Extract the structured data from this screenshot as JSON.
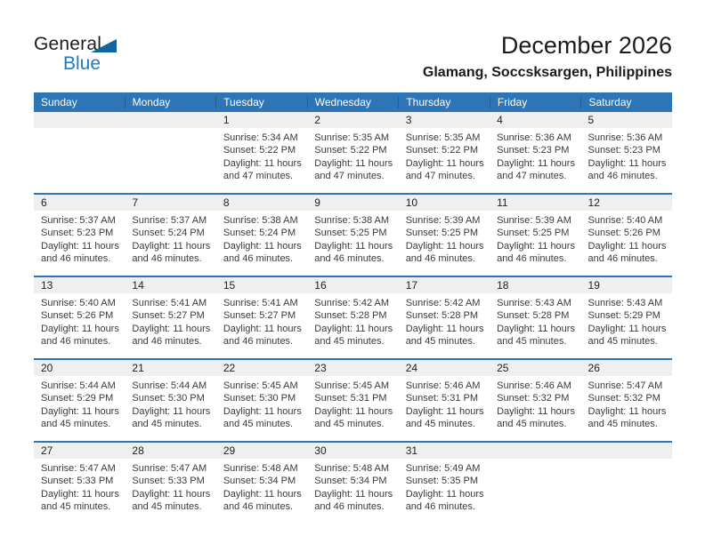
{
  "logo": {
    "general": "General",
    "blue": "Blue"
  },
  "header": {
    "title": "December 2026",
    "subtitle": "Glamang, Soccsksargen, Philippines"
  },
  "colors": {
    "header_blue": "#2E75B6",
    "header_divider": "#255E94",
    "row_separator_blue": "#2E75B6",
    "stripe_gray": "#EFEFEF",
    "weekday_text": "#FFFFFF",
    "logo_blue": "#1A7DC0",
    "logo_triangle_blue": "#10659F"
  },
  "calendar": {
    "weekdays": [
      "Sunday",
      "Monday",
      "Tuesday",
      "Wednesday",
      "Thursday",
      "Friday",
      "Saturday"
    ],
    "weeks": [
      [
        null,
        null,
        {
          "day": "1",
          "sunrise": "Sunrise: 5:34 AM",
          "sunset": "Sunset: 5:22 PM",
          "daylight1": "Daylight: 11 hours",
          "daylight2": "and 47 minutes."
        },
        {
          "day": "2",
          "sunrise": "Sunrise: 5:35 AM",
          "sunset": "Sunset: 5:22 PM",
          "daylight1": "Daylight: 11 hours",
          "daylight2": "and 47 minutes."
        },
        {
          "day": "3",
          "sunrise": "Sunrise: 5:35 AM",
          "sunset": "Sunset: 5:22 PM",
          "daylight1": "Daylight: 11 hours",
          "daylight2": "and 47 minutes."
        },
        {
          "day": "4",
          "sunrise": "Sunrise: 5:36 AM",
          "sunset": "Sunset: 5:23 PM",
          "daylight1": "Daylight: 11 hours",
          "daylight2": "and 47 minutes."
        },
        {
          "day": "5",
          "sunrise": "Sunrise: 5:36 AM",
          "sunset": "Sunset: 5:23 PM",
          "daylight1": "Daylight: 11 hours",
          "daylight2": "and 46 minutes."
        }
      ],
      [
        {
          "day": "6",
          "sunrise": "Sunrise: 5:37 AM",
          "sunset": "Sunset: 5:23 PM",
          "daylight1": "Daylight: 11 hours",
          "daylight2": "and 46 minutes."
        },
        {
          "day": "7",
          "sunrise": "Sunrise: 5:37 AM",
          "sunset": "Sunset: 5:24 PM",
          "daylight1": "Daylight: 11 hours",
          "daylight2": "and 46 minutes."
        },
        {
          "day": "8",
          "sunrise": "Sunrise: 5:38 AM",
          "sunset": "Sunset: 5:24 PM",
          "daylight1": "Daylight: 11 hours",
          "daylight2": "and 46 minutes."
        },
        {
          "day": "9",
          "sunrise": "Sunrise: 5:38 AM",
          "sunset": "Sunset: 5:25 PM",
          "daylight1": "Daylight: 11 hours",
          "daylight2": "and 46 minutes."
        },
        {
          "day": "10",
          "sunrise": "Sunrise: 5:39 AM",
          "sunset": "Sunset: 5:25 PM",
          "daylight1": "Daylight: 11 hours",
          "daylight2": "and 46 minutes."
        },
        {
          "day": "11",
          "sunrise": "Sunrise: 5:39 AM",
          "sunset": "Sunset: 5:25 PM",
          "daylight1": "Daylight: 11 hours",
          "daylight2": "and 46 minutes."
        },
        {
          "day": "12",
          "sunrise": "Sunrise: 5:40 AM",
          "sunset": "Sunset: 5:26 PM",
          "daylight1": "Daylight: 11 hours",
          "daylight2": "and 46 minutes."
        }
      ],
      [
        {
          "day": "13",
          "sunrise": "Sunrise: 5:40 AM",
          "sunset": "Sunset: 5:26 PM",
          "daylight1": "Daylight: 11 hours",
          "daylight2": "and 46 minutes."
        },
        {
          "day": "14",
          "sunrise": "Sunrise: 5:41 AM",
          "sunset": "Sunset: 5:27 PM",
          "daylight1": "Daylight: 11 hours",
          "daylight2": "and 46 minutes."
        },
        {
          "day": "15",
          "sunrise": "Sunrise: 5:41 AM",
          "sunset": "Sunset: 5:27 PM",
          "daylight1": "Daylight: 11 hours",
          "daylight2": "and 46 minutes."
        },
        {
          "day": "16",
          "sunrise": "Sunrise: 5:42 AM",
          "sunset": "Sunset: 5:28 PM",
          "daylight1": "Daylight: 11 hours",
          "daylight2": "and 45 minutes."
        },
        {
          "day": "17",
          "sunrise": "Sunrise: 5:42 AM",
          "sunset": "Sunset: 5:28 PM",
          "daylight1": "Daylight: 11 hours",
          "daylight2": "and 45 minutes."
        },
        {
          "day": "18",
          "sunrise": "Sunrise: 5:43 AM",
          "sunset": "Sunset: 5:28 PM",
          "daylight1": "Daylight: 11 hours",
          "daylight2": "and 45 minutes."
        },
        {
          "day": "19",
          "sunrise": "Sunrise: 5:43 AM",
          "sunset": "Sunset: 5:29 PM",
          "daylight1": "Daylight: 11 hours",
          "daylight2": "and 45 minutes."
        }
      ],
      [
        {
          "day": "20",
          "sunrise": "Sunrise: 5:44 AM",
          "sunset": "Sunset: 5:29 PM",
          "daylight1": "Daylight: 11 hours",
          "daylight2": "and 45 minutes."
        },
        {
          "day": "21",
          "sunrise": "Sunrise: 5:44 AM",
          "sunset": "Sunset: 5:30 PM",
          "daylight1": "Daylight: 11 hours",
          "daylight2": "and 45 minutes."
        },
        {
          "day": "22",
          "sunrise": "Sunrise: 5:45 AM",
          "sunset": "Sunset: 5:30 PM",
          "daylight1": "Daylight: 11 hours",
          "daylight2": "and 45 minutes."
        },
        {
          "day": "23",
          "sunrise": "Sunrise: 5:45 AM",
          "sunset": "Sunset: 5:31 PM",
          "daylight1": "Daylight: 11 hours",
          "daylight2": "and 45 minutes."
        },
        {
          "day": "24",
          "sunrise": "Sunrise: 5:46 AM",
          "sunset": "Sunset: 5:31 PM",
          "daylight1": "Daylight: 11 hours",
          "daylight2": "and 45 minutes."
        },
        {
          "day": "25",
          "sunrise": "Sunrise: 5:46 AM",
          "sunset": "Sunset: 5:32 PM",
          "daylight1": "Daylight: 11 hours",
          "daylight2": "and 45 minutes."
        },
        {
          "day": "26",
          "sunrise": "Sunrise: 5:47 AM",
          "sunset": "Sunset: 5:32 PM",
          "daylight1": "Daylight: 11 hours",
          "daylight2": "and 45 minutes."
        }
      ],
      [
        {
          "day": "27",
          "sunrise": "Sunrise: 5:47 AM",
          "sunset": "Sunset: 5:33 PM",
          "daylight1": "Daylight: 11 hours",
          "daylight2": "and 45 minutes."
        },
        {
          "day": "28",
          "sunrise": "Sunrise: 5:47 AM",
          "sunset": "Sunset: 5:33 PM",
          "daylight1": "Daylight: 11 hours",
          "daylight2": "and 45 minutes."
        },
        {
          "day": "29",
          "sunrise": "Sunrise: 5:48 AM",
          "sunset": "Sunset: 5:34 PM",
          "daylight1": "Daylight: 11 hours",
          "daylight2": "and 46 minutes."
        },
        {
          "day": "30",
          "sunrise": "Sunrise: 5:48 AM",
          "sunset": "Sunset: 5:34 PM",
          "daylight1": "Daylight: 11 hours",
          "daylight2": "and 46 minutes."
        },
        {
          "day": "31",
          "sunrise": "Sunrise: 5:49 AM",
          "sunset": "Sunset: 5:35 PM",
          "daylight1": "Daylight: 11 hours",
          "daylight2": "and 46 minutes."
        },
        null,
        null
      ]
    ]
  }
}
